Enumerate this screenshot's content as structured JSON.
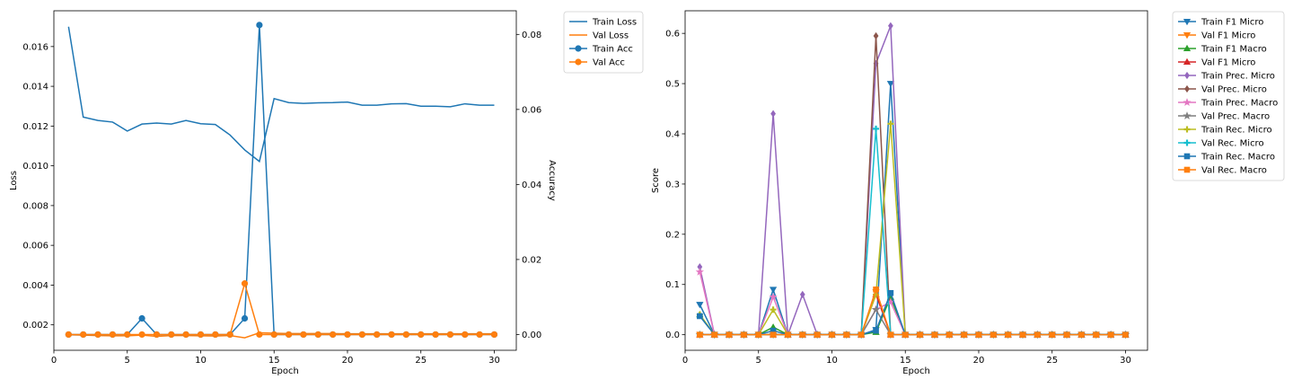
{
  "chart_data": [
    {
      "type": "line",
      "x": [
        1,
        2,
        3,
        4,
        5,
        6,
        7,
        8,
        9,
        10,
        11,
        12,
        13,
        14,
        15,
        16,
        17,
        18,
        19,
        20,
        21,
        22,
        23,
        24,
        25,
        26,
        27,
        28,
        29,
        30
      ],
      "xlabel": "Epoch",
      "ylabel": "Loss",
      "y2label": "Accuracy",
      "xlim": [
        0,
        31.5
      ],
      "ylim": [
        0.00072,
        0.0178
      ],
      "y2lim": [
        -0.0042,
        0.0863
      ],
      "xticks": [
        0,
        5,
        10,
        15,
        20,
        25,
        30
      ],
      "yticks": [
        0.002,
        0.004,
        0.006,
        0.008,
        0.01,
        0.012,
        0.014,
        0.016
      ],
      "ytick_labels": [
        "0.002",
        "0.004",
        "0.006",
        "0.008",
        "0.010",
        "0.012",
        "0.014",
        "0.016"
      ],
      "y2ticks": [
        0.0,
        0.02,
        0.04,
        0.06,
        0.08
      ],
      "y2tick_labels": [
        "0.00",
        "0.02",
        "0.04",
        "0.06",
        "0.08"
      ],
      "legend_position": "outside-right",
      "series": [
        {
          "name": "Train Loss",
          "axis": "left",
          "color": "#1f77b4",
          "marker": "none",
          "values": [
            0.017,
            0.01245,
            0.01228,
            0.0122,
            0.01175,
            0.0121,
            0.01215,
            0.0121,
            0.01228,
            0.01212,
            0.01208,
            0.01155,
            0.0108,
            0.01022,
            0.01338,
            0.01318,
            0.01314,
            0.01317,
            0.01318,
            0.01321,
            0.01305,
            0.01305,
            0.01312,
            0.01313,
            0.013,
            0.013,
            0.01297,
            0.01312,
            0.01305,
            0.01305
          ]
        },
        {
          "name": "Val Loss",
          "axis": "left",
          "color": "#ff7f0e",
          "marker": "none",
          "values": [
            0.0015,
            0.00148,
            0.00146,
            0.00145,
            0.00145,
            0.00148,
            0.00142,
            0.00146,
            0.00146,
            0.00145,
            0.00144,
            0.00146,
            0.00135,
            0.0016,
            0.00158,
            0.00156,
            0.00156,
            0.00156,
            0.00156,
            0.00155,
            0.00155,
            0.00155,
            0.00155,
            0.00155,
            0.00155,
            0.00155,
            0.00155,
            0.00155,
            0.00155,
            0.00155
          ]
        },
        {
          "name": "Train Acc",
          "axis": "right",
          "color": "#1f77b4",
          "marker": "circle",
          "values": [
            0,
            0,
            0,
            0,
            0,
            0.0043,
            0,
            0,
            0,
            0,
            0,
            0,
            0.0043,
            0.0825,
            0,
            0,
            0,
            0,
            0,
            0,
            0,
            0,
            0,
            0,
            0,
            0,
            0,
            0,
            0,
            0
          ]
        },
        {
          "name": "Val Acc",
          "axis": "right",
          "color": "#ff7f0e",
          "marker": "circle",
          "values": [
            0,
            0,
            0,
            0,
            0,
            0,
            0,
            0,
            0,
            0,
            0,
            0,
            0.0136,
            0,
            0,
            0,
            0,
            0,
            0,
            0,
            0,
            0,
            0,
            0,
            0,
            0,
            0,
            0,
            0,
            0
          ]
        }
      ]
    },
    {
      "type": "line",
      "x": [
        1,
        2,
        3,
        4,
        5,
        6,
        7,
        8,
        9,
        10,
        11,
        12,
        13,
        14,
        15,
        16,
        17,
        18,
        19,
        20,
        21,
        22,
        23,
        24,
        25,
        26,
        27,
        28,
        29,
        30
      ],
      "xlabel": "Epoch",
      "ylabel": "Score",
      "xlim": [
        0,
        31.5
      ],
      "ylim": [
        -0.031,
        0.645
      ],
      "xticks": [
        0,
        5,
        10,
        15,
        20,
        25,
        30
      ],
      "yticks": [
        0.0,
        0.1,
        0.2,
        0.3,
        0.4,
        0.5,
        0.6
      ],
      "ytick_labels": [
        "0.0",
        "0.1",
        "0.2",
        "0.3",
        "0.4",
        "0.5",
        "0.6"
      ],
      "legend_position": "outside-right",
      "series": [
        {
          "name": "Train F1 Micro",
          "color": "#1f77b4",
          "marker": "tri-down",
          "values": [
            0.06,
            0,
            0,
            0,
            0,
            0.09,
            0,
            0,
            0,
            0,
            0,
            0,
            0.01,
            0.5,
            0,
            0,
            0,
            0,
            0,
            0,
            0,
            0,
            0,
            0,
            0,
            0,
            0,
            0,
            0,
            0
          ]
        },
        {
          "name": "Val F1 Micro",
          "color": "#ff7f0e",
          "marker": "tri-down",
          "values": [
            0,
            0,
            0,
            0,
            0,
            0,
            0,
            0,
            0,
            0,
            0,
            0,
            0.085,
            0,
            0,
            0,
            0,
            0,
            0,
            0,
            0,
            0,
            0,
            0,
            0,
            0,
            0,
            0,
            0,
            0
          ]
        },
        {
          "name": "Train F1 Macro",
          "color": "#2ca02c",
          "marker": "tri-up",
          "values": [
            0.04,
            0,
            0,
            0,
            0,
            0.015,
            0,
            0,
            0,
            0,
            0,
            0,
            0.005,
            0.075,
            0,
            0,
            0,
            0,
            0,
            0,
            0,
            0,
            0,
            0,
            0,
            0,
            0,
            0,
            0,
            0
          ]
        },
        {
          "name": "Val F1 Micro",
          "color": "#d62728",
          "marker": "tri-up",
          "values": [
            0,
            0,
            0,
            0,
            0,
            0,
            0,
            0,
            0,
            0,
            0,
            0,
            0.08,
            0,
            0,
            0,
            0,
            0,
            0,
            0,
            0,
            0,
            0,
            0,
            0,
            0,
            0,
            0,
            0,
            0
          ]
        },
        {
          "name": "Train Prec. Micro",
          "color": "#9467bd",
          "marker": "diamond",
          "values": [
            0.135,
            0,
            0,
            0,
            0,
            0.44,
            0,
            0.08,
            0,
            0,
            0,
            0,
            0.54,
            0.615,
            0,
            0,
            0,
            0,
            0,
            0,
            0,
            0,
            0,
            0,
            0,
            0,
            0,
            0,
            0,
            0
          ]
        },
        {
          "name": "Val Prec. Micro",
          "color": "#8c564b",
          "marker": "diamond",
          "values": [
            0,
            0,
            0,
            0,
            0,
            0,
            0,
            0,
            0,
            0,
            0,
            0,
            0.595,
            0,
            0,
            0,
            0,
            0,
            0,
            0,
            0,
            0,
            0,
            0,
            0,
            0,
            0,
            0,
            0,
            0
          ]
        },
        {
          "name": "Train Prec. Macro",
          "color": "#e377c2",
          "marker": "star",
          "values": [
            0.125,
            0,
            0,
            0,
            0,
            0.075,
            0,
            0,
            0,
            0,
            0,
            0,
            0.05,
            0.065,
            0,
            0,
            0,
            0,
            0,
            0,
            0,
            0,
            0,
            0,
            0,
            0,
            0,
            0,
            0,
            0
          ]
        },
        {
          "name": "Val Prec. Macro",
          "color": "#7f7f7f",
          "marker": "star",
          "values": [
            0,
            0,
            0,
            0,
            0,
            0,
            0,
            0,
            0,
            0,
            0,
            0,
            0.05,
            0,
            0,
            0,
            0,
            0,
            0,
            0,
            0,
            0,
            0,
            0,
            0,
            0,
            0,
            0,
            0,
            0
          ]
        },
        {
          "name": "Train Rec. Micro",
          "color": "#bcbd22",
          "marker": "plus",
          "values": [
            0.04,
            0,
            0,
            0,
            0,
            0.05,
            0,
            0,
            0,
            0,
            0,
            0,
            0.08,
            0.42,
            0,
            0,
            0,
            0,
            0,
            0,
            0,
            0,
            0,
            0,
            0,
            0,
            0,
            0,
            0,
            0
          ]
        },
        {
          "name": "Val Rec. Micro",
          "color": "#17becf",
          "marker": "plus",
          "values": [
            0,
            0,
            0,
            0,
            0,
            0,
            0,
            0,
            0,
            0,
            0,
            0,
            0.41,
            0,
            0,
            0,
            0,
            0,
            0,
            0,
            0,
            0,
            0,
            0,
            0,
            0,
            0,
            0,
            0,
            0
          ]
        },
        {
          "name": "Train Rec. Macro",
          "color": "#1f77b4",
          "marker": "square",
          "values": [
            0.037,
            0,
            0,
            0,
            0,
            0.008,
            0,
            0,
            0,
            0,
            0,
            0,
            0.008,
            0.083,
            0,
            0,
            0,
            0,
            0,
            0,
            0,
            0,
            0,
            0,
            0,
            0,
            0,
            0,
            0,
            0
          ]
        },
        {
          "name": "Val Rec. Macro",
          "color": "#ff7f0e",
          "marker": "square",
          "values": [
            0,
            0,
            0,
            0,
            0,
            0,
            0,
            0,
            0,
            0,
            0,
            0,
            0.09,
            0,
            0,
            0,
            0,
            0,
            0,
            0,
            0,
            0,
            0,
            0,
            0,
            0,
            0,
            0,
            0,
            0
          ]
        }
      ]
    }
  ]
}
